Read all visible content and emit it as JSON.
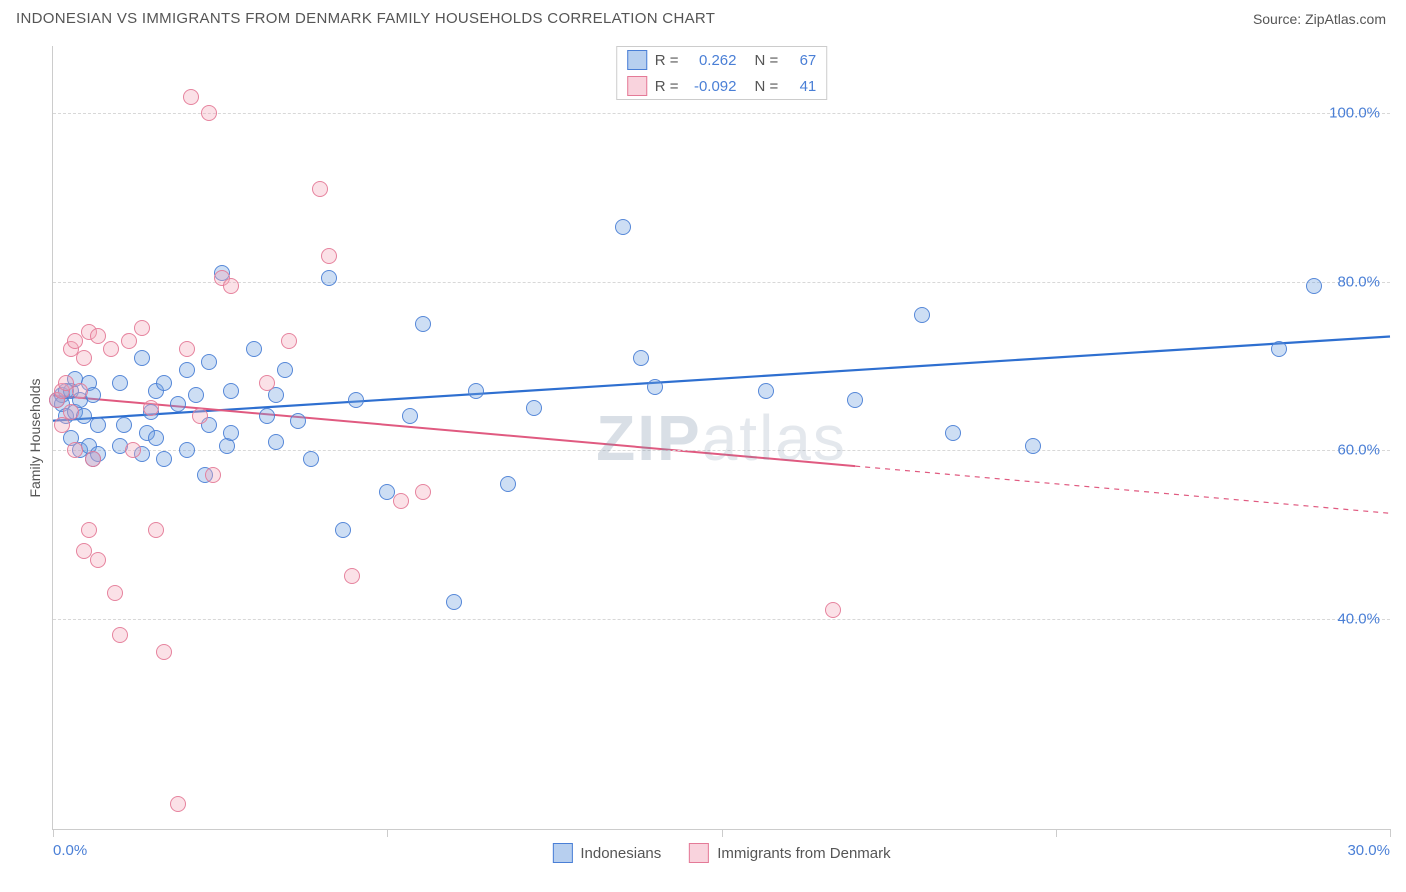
{
  "title": "INDONESIAN VS IMMIGRANTS FROM DENMARK FAMILY HOUSEHOLDS CORRELATION CHART",
  "source": "Source: ZipAtlas.com",
  "watermark": {
    "part1": "ZIP",
    "part2": "atlas"
  },
  "chart": {
    "type": "scatter",
    "yaxis_title": "Family Households",
    "background_color": "#ffffff",
    "grid_color": "#d8d8d8",
    "axis_color": "#cccccc",
    "tick_label_color": "#4a7fd6",
    "text_color": "#555555",
    "xlim": [
      0,
      30
    ],
    "ylim": [
      15,
      108
    ],
    "xticks": [
      0,
      7.5,
      15,
      22.5,
      30
    ],
    "xtick_labels": {
      "0": "0.0%",
      "30": "30.0%"
    },
    "yticks": [
      40,
      60,
      80,
      100
    ],
    "ytick_labels": {
      "40": "40.0%",
      "60": "60.0%",
      "80": "80.0%",
      "100": "100.0%"
    },
    "marker_radius": 8,
    "marker_fill_opacity": 0.35,
    "marker_stroke_opacity": 0.9,
    "marker_stroke_width": 1.2,
    "series": [
      {
        "name": "Indonesians",
        "color": "#6fa0e0",
        "stroke": "#4a7fd6",
        "correlation": "0.262",
        "n": "67",
        "trend": {
          "x0": 0,
          "y0": 63.5,
          "x1": 30,
          "y1": 73.5,
          "color": "#2e6fd0",
          "width": 2.2,
          "data_xmax": 30
        },
        "points": [
          [
            0.1,
            66
          ],
          [
            0.2,
            66.5
          ],
          [
            0.2,
            65.5
          ],
          [
            0.3,
            67
          ],
          [
            0.3,
            64
          ],
          [
            0.4,
            67
          ],
          [
            0.4,
            61.5
          ],
          [
            0.5,
            68.5
          ],
          [
            0.5,
            64.5
          ],
          [
            0.6,
            60
          ],
          [
            0.6,
            66
          ],
          [
            0.7,
            64
          ],
          [
            0.8,
            68
          ],
          [
            0.8,
            60.5
          ],
          [
            0.9,
            59
          ],
          [
            0.9,
            66.5
          ],
          [
            1.0,
            63
          ],
          [
            1.0,
            59.5
          ],
          [
            1.5,
            68
          ],
          [
            1.5,
            60.5
          ],
          [
            1.6,
            63
          ],
          [
            2.0,
            71
          ],
          [
            2.0,
            59.5
          ],
          [
            2.1,
            62
          ],
          [
            2.2,
            64.5
          ],
          [
            2.3,
            67
          ],
          [
            2.3,
            61.5
          ],
          [
            2.5,
            68
          ],
          [
            2.5,
            59
          ],
          [
            2.8,
            65.5
          ],
          [
            3.0,
            69.5
          ],
          [
            3.0,
            60
          ],
          [
            3.2,
            66.5
          ],
          [
            3.4,
            57
          ],
          [
            3.5,
            70.5
          ],
          [
            3.5,
            63
          ],
          [
            3.8,
            81
          ],
          [
            3.9,
            60.5
          ],
          [
            4.0,
            67
          ],
          [
            4.0,
            62
          ],
          [
            4.5,
            72
          ],
          [
            4.8,
            64
          ],
          [
            5.0,
            66.5
          ],
          [
            5.0,
            61
          ],
          [
            5.2,
            69.5
          ],
          [
            5.5,
            63.5
          ],
          [
            5.8,
            59
          ],
          [
            6.2,
            80.5
          ],
          [
            6.5,
            50.5
          ],
          [
            6.8,
            66
          ],
          [
            7.5,
            55
          ],
          [
            8.0,
            64
          ],
          [
            8.3,
            75
          ],
          [
            9.0,
            42
          ],
          [
            9.5,
            67
          ],
          [
            10.2,
            56
          ],
          [
            10.8,
            65
          ],
          [
            12.8,
            86.5
          ],
          [
            13.2,
            71
          ],
          [
            13.5,
            67.5
          ],
          [
            16.0,
            67
          ],
          [
            18.0,
            66
          ],
          [
            19.5,
            76
          ],
          [
            20.2,
            62
          ],
          [
            22.0,
            60.5
          ],
          [
            27.5,
            72
          ],
          [
            28.3,
            79.5
          ]
        ]
      },
      {
        "name": "Immigrants from Denmark",
        "color": "#f4a8bb",
        "stroke": "#e47a97",
        "correlation": "-0.092",
        "n": "41",
        "trend": {
          "x0": 0,
          "y0": 66.5,
          "x1": 30,
          "y1": 52.5,
          "color": "#e05a80",
          "width": 2.0,
          "data_xmax": 18
        },
        "points": [
          [
            0.1,
            66
          ],
          [
            0.2,
            67
          ],
          [
            0.2,
            63
          ],
          [
            0.3,
            68
          ],
          [
            0.4,
            64.5
          ],
          [
            0.4,
            72
          ],
          [
            0.5,
            73
          ],
          [
            0.5,
            60
          ],
          [
            0.6,
            67
          ],
          [
            0.7,
            71
          ],
          [
            0.7,
            48
          ],
          [
            0.8,
            74
          ],
          [
            0.8,
            50.5
          ],
          [
            0.9,
            59
          ],
          [
            1.0,
            73.5
          ],
          [
            1.0,
            47
          ],
          [
            1.3,
            72
          ],
          [
            1.4,
            43
          ],
          [
            1.5,
            38
          ],
          [
            1.7,
            73
          ],
          [
            1.8,
            60
          ],
          [
            2.0,
            74.5
          ],
          [
            2.2,
            65
          ],
          [
            2.3,
            50.5
          ],
          [
            2.5,
            36
          ],
          [
            2.8,
            18
          ],
          [
            3.0,
            72
          ],
          [
            3.1,
            102
          ],
          [
            3.3,
            64
          ],
          [
            3.5,
            100
          ],
          [
            3.6,
            57
          ],
          [
            3.8,
            80.5
          ],
          [
            4.0,
            79.5
          ],
          [
            4.8,
            68
          ],
          [
            5.3,
            73
          ],
          [
            6.0,
            91
          ],
          [
            6.2,
            83
          ],
          [
            6.7,
            45
          ],
          [
            7.8,
            54
          ],
          [
            8.3,
            55
          ],
          [
            17.5,
            41
          ]
        ]
      }
    ],
    "legend_top_labels": {
      "r": "R =",
      "n": "N ="
    },
    "legend_bottom_labels": [
      "Indonesians",
      "Immigrants from Denmark"
    ]
  }
}
